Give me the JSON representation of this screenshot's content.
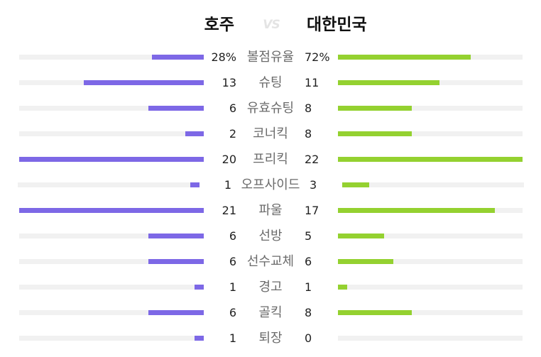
{
  "header": {
    "team_home": "호주",
    "vs": "VS",
    "team_away": "대한민국"
  },
  "colors": {
    "home": "#7d68e6",
    "away": "#94d130",
    "track": "#f1f1f1"
  },
  "stats": [
    {
      "label": "볼점유율",
      "home": "28%",
      "away": "72%",
      "home_share": 0.28,
      "away_share": 0.72
    },
    {
      "label": "슈팅",
      "home": "13",
      "away": "11",
      "home_share": 0.65,
      "away_share": 0.55
    },
    {
      "label": "유효슈팅",
      "home": "6",
      "away": "8",
      "home_share": 0.3,
      "away_share": 0.4
    },
    {
      "label": "코너킥",
      "home": "2",
      "away": "8",
      "home_share": 0.1,
      "away_share": 0.4
    },
    {
      "label": "프리킥",
      "home": "20",
      "away": "22",
      "home_share": 1.0,
      "away_share": 1.0
    },
    {
      "label": "오프사이드",
      "home": "1",
      "away": "3",
      "home_share": 0.05,
      "away_share": 0.15
    },
    {
      "label": "파울",
      "home": "21",
      "away": "17",
      "home_share": 1.0,
      "away_share": 0.85
    },
    {
      "label": "선방",
      "home": "6",
      "away": "5",
      "home_share": 0.3,
      "away_share": 0.25
    },
    {
      "label": "선수교체",
      "home": "6",
      "away": "6",
      "home_share": 0.3,
      "away_share": 0.3
    },
    {
      "label": "경고",
      "home": "1",
      "away": "1",
      "home_share": 0.05,
      "away_share": 0.05
    },
    {
      "label": "골킥",
      "home": "6",
      "away": "8",
      "home_share": 0.3,
      "away_share": 0.4
    },
    {
      "label": "퇴장",
      "home": "1",
      "away": "0",
      "home_share": 0.05,
      "away_share": 0.0
    }
  ]
}
